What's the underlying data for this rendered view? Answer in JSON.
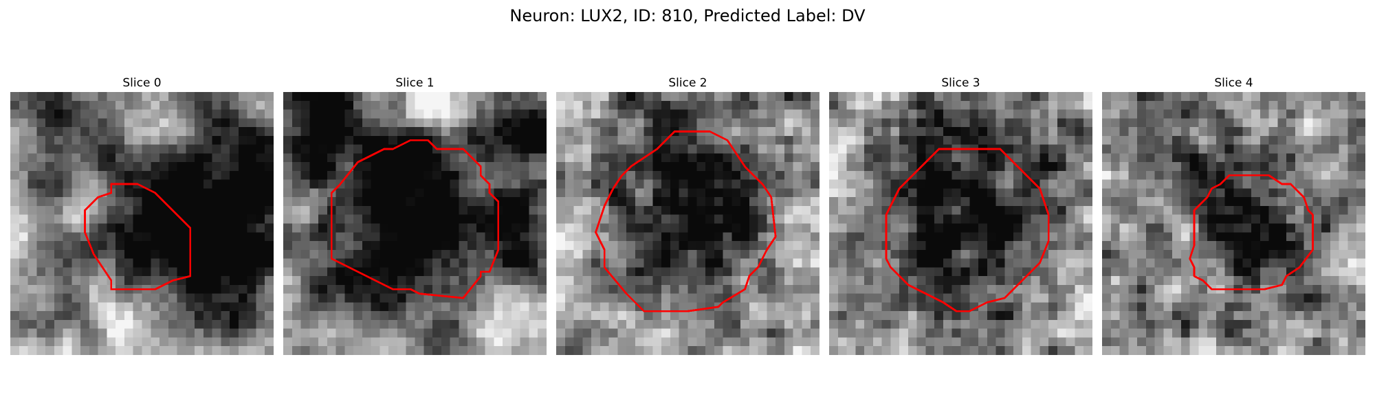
{
  "figure": {
    "suptitle": "Neuron: LUX2, ID: 810, Predicted Label: DV",
    "contour_color": "#ff0000",
    "colormap": "gray",
    "panels": [
      {
        "title": "Slice 0",
        "seed": 11,
        "blur": 3.2,
        "contrast": 1.25,
        "blobs": [
          [
            0.55,
            0.55,
            0.32,
            -0.55
          ],
          [
            0.88,
            0.55,
            0.35,
            -0.7
          ],
          [
            0.72,
            0.15,
            0.2,
            -0.3
          ],
          [
            0.15,
            0.2,
            0.18,
            -0.15
          ],
          [
            0.5,
            0.95,
            0.3,
            0.35
          ]
        ]
      },
      {
        "title": "Slice 1",
        "seed": 22,
        "blur": 2.4,
        "contrast": 1.3,
        "blobs": [
          [
            0.5,
            0.47,
            0.36,
            -0.75
          ],
          [
            0.15,
            0.12,
            0.2,
            -0.6
          ],
          [
            0.95,
            0.15,
            0.15,
            -0.5
          ],
          [
            0.92,
            0.55,
            0.18,
            -0.4
          ],
          [
            0.6,
            0.05,
            0.15,
            0.45
          ],
          [
            0.9,
            0.9,
            0.22,
            0.3
          ]
        ]
      },
      {
        "title": "Slice 2",
        "seed": 33,
        "blur": 1.4,
        "contrast": 1.2,
        "blobs": [
          [
            0.5,
            0.47,
            0.4,
            -0.6
          ],
          [
            0.5,
            0.05,
            0.25,
            -0.2
          ],
          [
            0.05,
            0.5,
            0.15,
            0.3
          ],
          [
            0.95,
            0.55,
            0.15,
            0.25
          ]
        ]
      },
      {
        "title": "Slice 3",
        "seed": 44,
        "blur": 1.0,
        "contrast": 1.2,
        "blobs": [
          [
            0.52,
            0.5,
            0.36,
            -0.55
          ],
          [
            0.5,
            0.08,
            0.28,
            -0.3
          ],
          [
            0.05,
            0.3,
            0.15,
            0.3
          ],
          [
            0.9,
            0.85,
            0.15,
            0.2
          ]
        ]
      },
      {
        "title": "Slice 4",
        "seed": 55,
        "blur": 1.0,
        "contrast": 1.2,
        "blobs": [
          [
            0.58,
            0.5,
            0.28,
            -0.5
          ],
          [
            0.3,
            0.2,
            0.2,
            -0.25
          ],
          [
            0.9,
            0.3,
            0.2,
            0.15
          ]
        ]
      }
    ]
  }
}
